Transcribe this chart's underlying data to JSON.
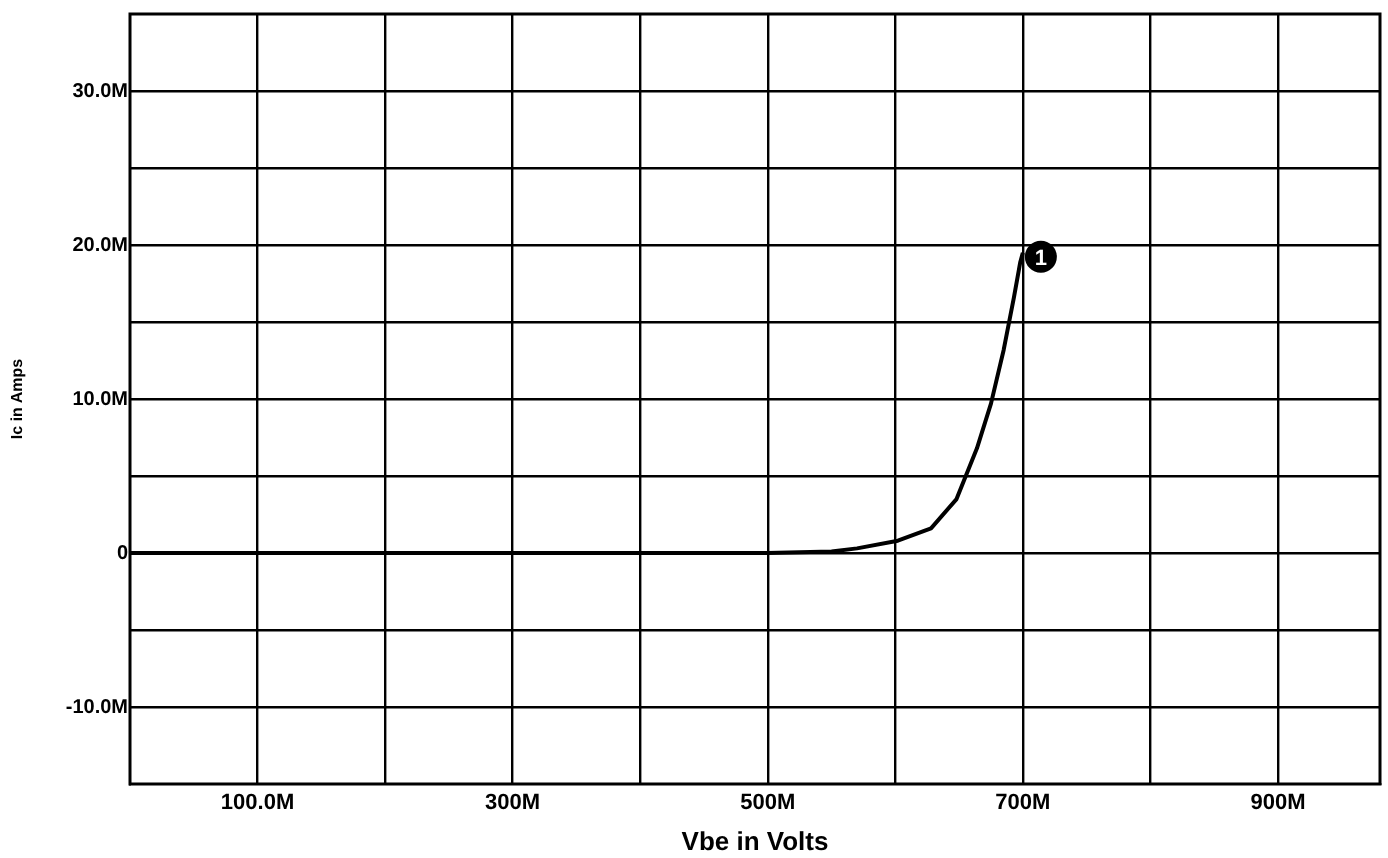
{
  "chart_data": {
    "type": "line",
    "xlabel": "Vbe in Volts",
    "ylabel": "Ic in Amps",
    "x": [
      0,
      100,
      200,
      300,
      400,
      500,
      550,
      570,
      602,
      628,
      648,
      664,
      675,
      685,
      693,
      698,
      700
    ],
    "series": [
      {
        "color": "#000000",
        "values": [
          0,
          0,
          0,
          0,
          0,
          0,
          0.1,
          0.3,
          0.8,
          1.6,
          3.5,
          6.8,
          9.7,
          13.2,
          16.6,
          18.9,
          19.5
        ]
      }
    ],
    "xlim": [
      0,
      980
    ],
    "xticks": [
      {
        "value": 100,
        "label": "100.0M"
      },
      {
        "value": 200,
        "label": null
      },
      {
        "value": 300,
        "label": "300M"
      },
      {
        "value": 400,
        "label": null
      },
      {
        "value": 500,
        "label": "500M"
      },
      {
        "value": 600,
        "label": null
      },
      {
        "value": 700,
        "label": "700M"
      },
      {
        "value": 800,
        "label": null
      },
      {
        "value": 900,
        "label": "900M"
      }
    ],
    "ylim": [
      -15,
      35
    ],
    "yticks": [
      {
        "value": -10,
        "label": "-10.0M"
      },
      {
        "value": -5,
        "label": null
      },
      0,
      {
        "value": 5,
        "label": null
      },
      {
        "value": 10,
        "label": "10.0M"
      },
      {
        "value": 15,
        "label": null
      },
      {
        "value": 20,
        "label": "20.0M"
      },
      {
        "value": 25,
        "label": null
      },
      {
        "value": 30,
        "label": "30.0M"
      }
    ],
    "annotations": [
      {
        "text": "1",
        "x": 700,
        "y": 19.5
      }
    ],
    "grid": true,
    "legend": false,
    "marker": "none",
    "line_style": "solid"
  }
}
